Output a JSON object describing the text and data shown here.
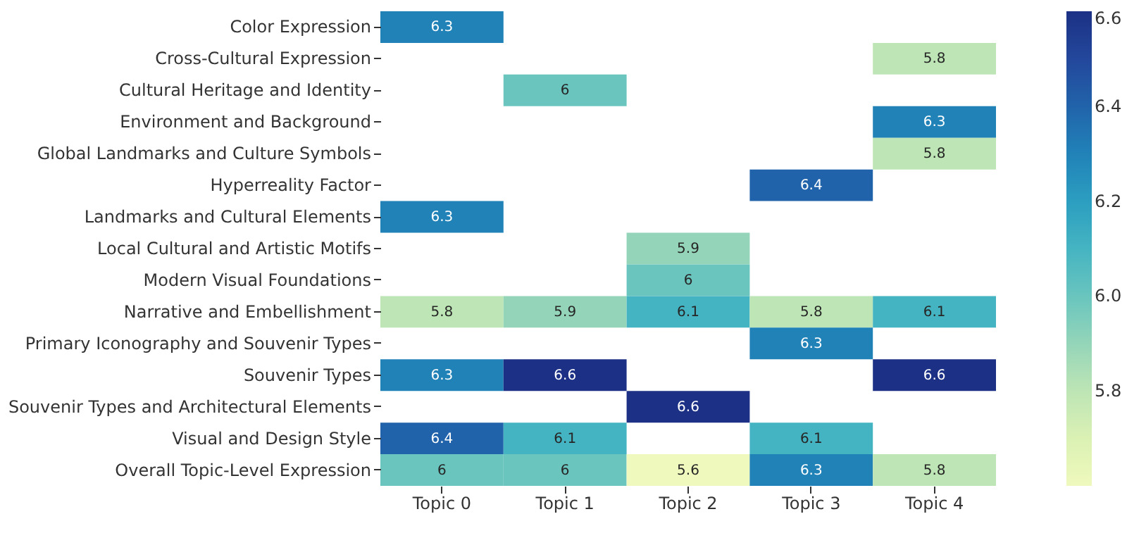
{
  "chart_data": {
    "type": "heatmap",
    "categories": [
      "Topic 0",
      "Topic 1",
      "Topic 2",
      "Topic 3",
      "Topic 4"
    ],
    "y_categories": [
      "Color Expression",
      "Cross-Cultural Expression",
      "Cultural Heritage and Identity",
      "Environment and Background",
      "Global Landmarks and Culture Symbols",
      "Hyperreality Factor",
      "Landmarks and Cultural Elements",
      "Local Cultural and Artistic Motifs",
      "Modern Visual Foundations",
      "Narrative and Embellishment",
      "Primary Iconography and Souvenir Types",
      "Souvenir Types",
      "Souvenir Types and Architectural Elements",
      "Visual and Design Style",
      "Overall Topic-Level Expression"
    ],
    "cells": [
      [
        6.3,
        null,
        null,
        null,
        null
      ],
      [
        null,
        null,
        null,
        null,
        5.8
      ],
      [
        null,
        6,
        null,
        null,
        null
      ],
      [
        null,
        null,
        null,
        null,
        6.3
      ],
      [
        null,
        null,
        null,
        null,
        5.8
      ],
      [
        null,
        null,
        null,
        6.4,
        null
      ],
      [
        6.3,
        null,
        null,
        null,
        null
      ],
      [
        null,
        null,
        5.9,
        null,
        null
      ],
      [
        null,
        null,
        6,
        null,
        null
      ],
      [
        5.8,
        5.9,
        6.1,
        5.8,
        6.1
      ],
      [
        null,
        null,
        null,
        6.3,
        null
      ],
      [
        6.3,
        6.6,
        null,
        null,
        6.6
      ],
      [
        null,
        null,
        6.6,
        null,
        null
      ],
      [
        6.4,
        6.1,
        null,
        6.1,
        null
      ],
      [
        6,
        6,
        5.6,
        6.3,
        5.8
      ]
    ],
    "clim": [
      5.6,
      6.6
    ],
    "cticks": [
      5.8,
      {
        "value": 6,
        "label": "6.0"
      },
      6.2,
      6.4,
      6.6
    ],
    "data_labels": true,
    "grid": false
  }
}
